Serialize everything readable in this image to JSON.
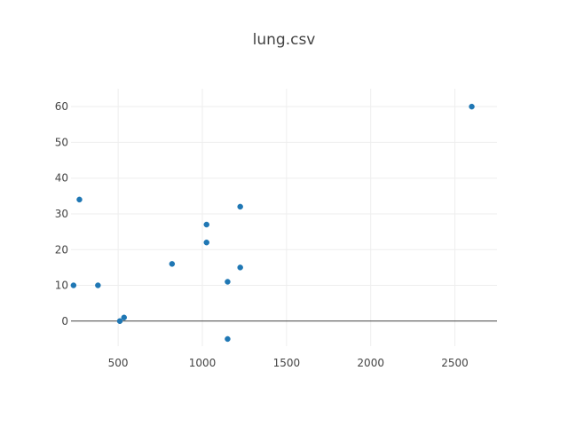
{
  "chart_data": {
    "type": "scatter",
    "title": "lung.csv",
    "xlabel": "",
    "ylabel": "",
    "xlim": [
      220,
      2750
    ],
    "ylim": [
      -7,
      65
    ],
    "x_ticks": [
      500,
      1000,
      1500,
      2000,
      2500
    ],
    "y_ticks": [
      0,
      10,
      20,
      30,
      40,
      50,
      60
    ],
    "grid": true,
    "marker_color": "#1f77b4",
    "series": [
      {
        "points": [
          {
            "x": 235,
            "y": 10
          },
          {
            "x": 270,
            "y": 34
          },
          {
            "x": 380,
            "y": 10
          },
          {
            "x": 510,
            "y": 0
          },
          {
            "x": 535,
            "y": 1
          },
          {
            "x": 820,
            "y": 16
          },
          {
            "x": 1025,
            "y": 27
          },
          {
            "x": 1025,
            "y": 22
          },
          {
            "x": 1150,
            "y": 11
          },
          {
            "x": 1150,
            "y": -5
          },
          {
            "x": 1225,
            "y": 32
          },
          {
            "x": 1225,
            "y": 15
          },
          {
            "x": 2600,
            "y": 60
          }
        ]
      }
    ]
  }
}
